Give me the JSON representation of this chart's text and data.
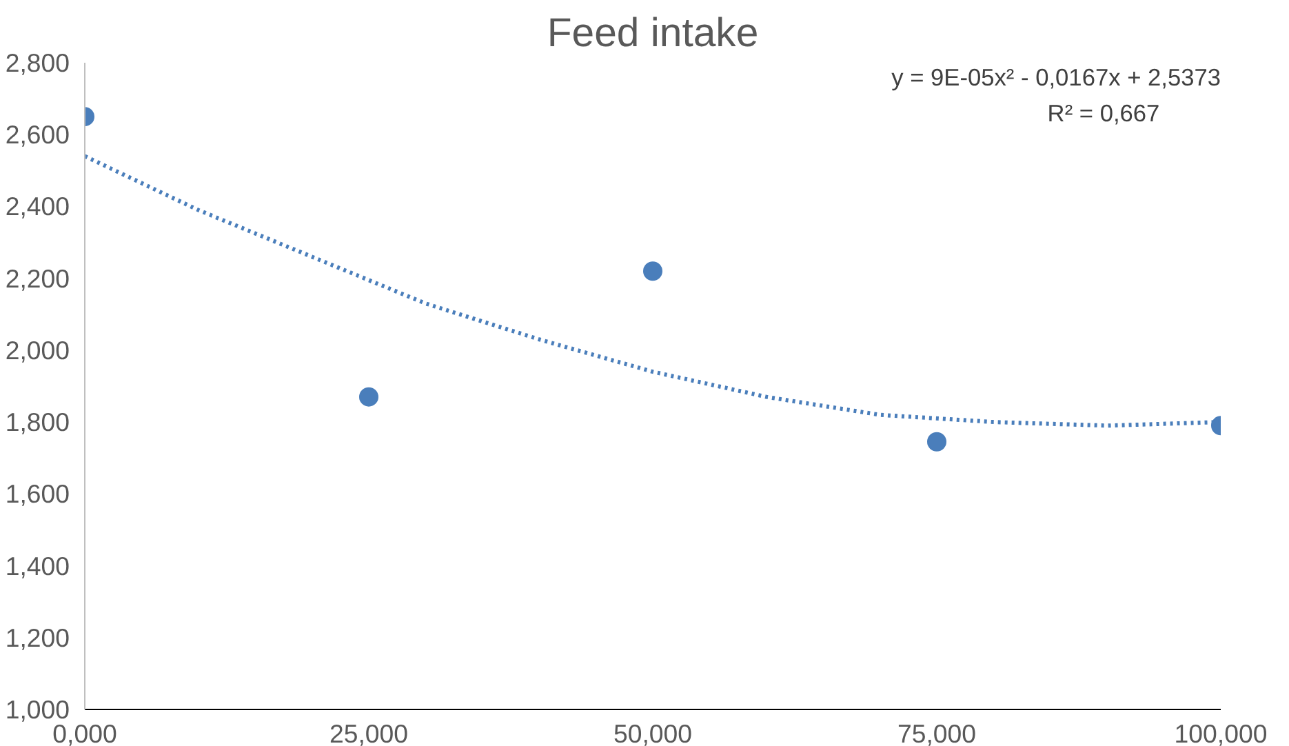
{
  "chart_data": {
    "type": "scatter",
    "title": "Feed intake",
    "series": [
      {
        "color": "#4a7ebb",
        "marker": "circle",
        "x": [
          0,
          25,
          50,
          75,
          100
        ],
        "values": [
          2.65,
          1.87,
          2.22,
          1.745,
          1.79
        ]
      },
      {
        "type": "line",
        "line_style": "dotted",
        "marker": "none",
        "color": "#4a7ebb",
        "x": [
          0,
          10,
          20,
          30,
          40,
          50,
          60,
          70,
          80,
          90,
          100
        ],
        "values": [
          2.54,
          2.39,
          2.26,
          2.13,
          2.03,
          1.94,
          1.87,
          1.82,
          1.8,
          1.79,
          1.8
        ]
      }
    ],
    "xlim": [
      0,
      100
    ],
    "ylim": [
      1.0,
      2.8
    ],
    "xticks": [
      {
        "value": 0,
        "label": "0,000"
      },
      {
        "value": 25,
        "label": "25,000"
      },
      {
        "value": 50,
        "label": "50,000"
      },
      {
        "value": 75,
        "label": "75,000"
      },
      {
        "value": 100,
        "label": "100,000"
      }
    ],
    "yticks": [
      {
        "value": 1.0,
        "label": "1,000"
      },
      {
        "value": 1.2,
        "label": "1,200"
      },
      {
        "value": 1.4,
        "label": "1,400"
      },
      {
        "value": 1.6,
        "label": "1,600"
      },
      {
        "value": 1.8,
        "label": "1,800"
      },
      {
        "value": 2.0,
        "label": "2,000"
      },
      {
        "value": 2.2,
        "label": "2,200"
      },
      {
        "value": 2.4,
        "label": "2,400"
      },
      {
        "value": 2.6,
        "label": "2,600"
      },
      {
        "value": 2.8,
        "label": "2,800"
      }
    ],
    "grid": false,
    "annotations": [
      "y = 9E-05x² - 0,0167x + 2,5373",
      "R² = 0,667"
    ]
  }
}
